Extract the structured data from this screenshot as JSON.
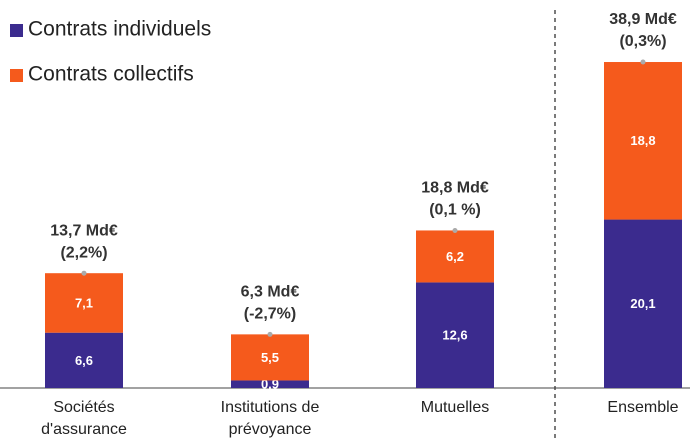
{
  "chart_data": {
    "type": "stacked-bar",
    "categories": [
      "Sociétés d'assurance",
      "Institutions de prévoyance",
      "Mutuelles",
      "Ensemble"
    ],
    "series": [
      {
        "name": "Contrats individuels",
        "color": "#3b2b8e",
        "values": [
          6.6,
          0.9,
          12.6,
          20.1
        ],
        "value_labels": [
          "6,6",
          "0,9",
          "12,6",
          "20,1"
        ]
      },
      {
        "name": "Contrats collectifs",
        "color": "#f55a1c",
        "values": [
          7.1,
          5.5,
          6.2,
          18.8
        ],
        "value_labels": [
          "7,1",
          "5,5",
          "6,2",
          "18,8"
        ]
      }
    ],
    "totals": [
      {
        "label": "13,7 Md€",
        "change": "(2,2%)"
      },
      {
        "label": "6,3 Md€",
        "change": "(-2,7%)"
      },
      {
        "label": "18,8 Md€",
        "change": "(0,1 %)"
      },
      {
        "label": "38,9 Md€",
        "change": "(0,3%)"
      }
    ]
  }
}
